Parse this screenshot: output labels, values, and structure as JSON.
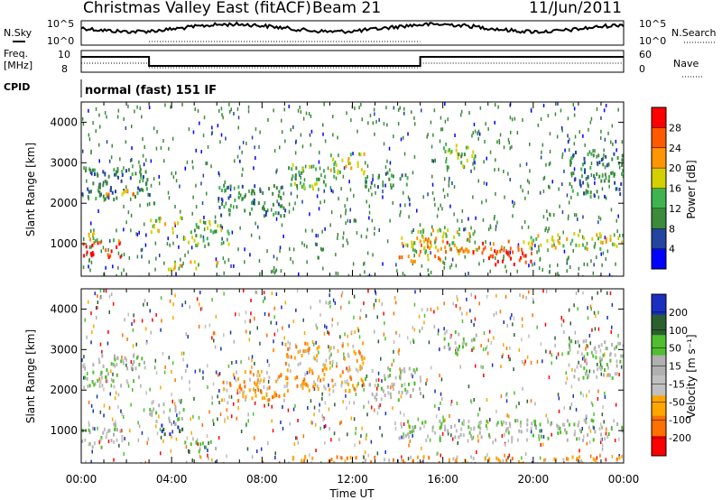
{
  "header": {
    "station": "Christmas Valley East (fitACF)",
    "beam": "Beam 21",
    "date": "11/Jun/2011"
  },
  "strip_labels": {
    "nsky": "N.Sky",
    "nsearch": "N.Search",
    "freq": "Freq.",
    "freq_unit": "[MHz]",
    "nave": "Nave",
    "cpid": "CPID",
    "cpid_value": "normal (fast) 151 IF",
    "noise_top": "10^5",
    "noise_bottom": "10^0",
    "freq_top": "10",
    "freq_bottom": "8",
    "nave_top": "60",
    "nave_bottom": "0"
  },
  "time_axis": {
    "label": "Time UT",
    "ticks": [
      "00:00",
      "04:00",
      "08:00",
      "12:00",
      "16:00",
      "20:00",
      "00:00"
    ]
  },
  "colors": {
    "power_scale": [
      "#0000ff",
      "#2345a0",
      "#3c8a3c",
      "#3fb34f",
      "#d4d000",
      "#ff9500",
      "#ff5a00",
      "#ff0000"
    ],
    "velocity_scale": [
      "#1a2fc0",
      "#2a6030",
      "#4fbf2f",
      "#b0b0b0",
      "#c0c0c0",
      "#ffa500",
      "#ff7000",
      "#ff0000"
    ]
  },
  "chart_data": [
    {
      "type": "heatmap",
      "ylabel": "Slant Range [km]",
      "xlabel": "",
      "yticks": [
        1000,
        2000,
        3000,
        4000
      ],
      "ylim": [
        200,
        4500
      ],
      "xlim": [
        0,
        24
      ],
      "colorbar": {
        "label": "Power [dB]",
        "ticks": [
          4,
          8,
          12,
          16,
          20,
          24,
          28
        ]
      },
      "regions": [
        {
          "t0": 0.0,
          "t1": 1.8,
          "r0": 700,
          "r1": 1100,
          "level": 7
        },
        {
          "t0": 0.0,
          "t1": 1.8,
          "r0": 1100,
          "r1": 1300,
          "level": 4
        },
        {
          "t0": 0.0,
          "t1": 3.0,
          "r0": 2100,
          "r1": 2900,
          "level": 2
        },
        {
          "t0": 1.0,
          "t1": 2.5,
          "r0": 2200,
          "r1": 2400,
          "level": 5
        },
        {
          "t0": 3.0,
          "t1": 4.5,
          "r0": 1300,
          "r1": 1700,
          "level": 4
        },
        {
          "t0": 4.5,
          "t1": 6.5,
          "r0": 1000,
          "r1": 1600,
          "level": 3
        },
        {
          "t0": 3.5,
          "t1": 6.0,
          "r0": 400,
          "r1": 600,
          "level": 4
        },
        {
          "t0": 6.0,
          "t1": 9.0,
          "r0": 1700,
          "r1": 2500,
          "level": 2
        },
        {
          "t0": 9.0,
          "t1": 11.0,
          "r0": 2400,
          "r1": 3000,
          "level": 3
        },
        {
          "t0": 11.0,
          "t1": 12.5,
          "r0": 2700,
          "r1": 3300,
          "level": 4
        },
        {
          "t0": 12.5,
          "t1": 14.5,
          "r0": 2400,
          "r1": 2800,
          "level": 2
        },
        {
          "t0": 14.0,
          "t1": 16.0,
          "r0": 600,
          "r1": 1200,
          "level": 5
        },
        {
          "t0": 14.5,
          "t1": 17.5,
          "r0": 800,
          "r1": 1400,
          "level": 4
        },
        {
          "t0": 16.0,
          "t1": 19.5,
          "r0": 800,
          "r1": 1100,
          "level": 6
        },
        {
          "t0": 18.0,
          "t1": 20.0,
          "r0": 500,
          "r1": 900,
          "level": 7
        },
        {
          "t0": 19.5,
          "t1": 24.0,
          "r0": 900,
          "r1": 1300,
          "level": 4
        },
        {
          "t0": 16.0,
          "t1": 17.5,
          "r0": 2900,
          "r1": 3500,
          "level": 3
        },
        {
          "t0": 21.5,
          "t1": 24.0,
          "r0": 2200,
          "r1": 3300,
          "level": 2
        }
      ]
    },
    {
      "type": "heatmap",
      "ylabel": "Slant Range [km]",
      "xlabel": "Time UT",
      "yticks": [
        1000,
        2000,
        3000,
        4000
      ],
      "ylim": [
        200,
        4500
      ],
      "xlim": [
        0,
        24
      ],
      "colorbar": {
        "label": "Velocity [m s⁻¹]",
        "ticks": [
          200,
          100,
          50,
          15,
          -15,
          -50,
          -100,
          -200
        ]
      },
      "regions": [
        {
          "t0": 0.0,
          "t1": 1.8,
          "r0": 600,
          "r1": 1200,
          "level": 3
        },
        {
          "t0": 0.0,
          "t1": 2.8,
          "r0": 2100,
          "r1": 2900,
          "level": 3
        },
        {
          "t0": 3.0,
          "t1": 4.5,
          "r0": 1200,
          "r1": 1800,
          "level": 3
        },
        {
          "t0": 3.5,
          "t1": 4.5,
          "r0": 900,
          "r1": 1200,
          "level": 0
        },
        {
          "t0": 4.5,
          "t1": 6.0,
          "r0": 500,
          "r1": 800,
          "level": 2
        },
        {
          "t0": 6.0,
          "t1": 9.0,
          "r0": 1700,
          "r1": 2500,
          "level": 5
        },
        {
          "t0": 9.0,
          "t1": 12.5,
          "r0": 2000,
          "r1": 3200,
          "level": 5
        },
        {
          "t0": 12.5,
          "t1": 15.0,
          "r0": 1800,
          "r1": 2600,
          "level": 3
        },
        {
          "t0": 14.0,
          "t1": 24.0,
          "r0": 800,
          "r1": 1300,
          "level": 3
        },
        {
          "t0": 9.0,
          "t1": 24.0,
          "r0": 200,
          "r1": 400,
          "level": 5
        },
        {
          "t0": 16.0,
          "t1": 17.5,
          "r0": 2900,
          "r1": 3500,
          "level": 3
        },
        {
          "t0": 21.5,
          "t1": 24.0,
          "r0": 2300,
          "r1": 3300,
          "level": 3
        }
      ]
    }
  ]
}
